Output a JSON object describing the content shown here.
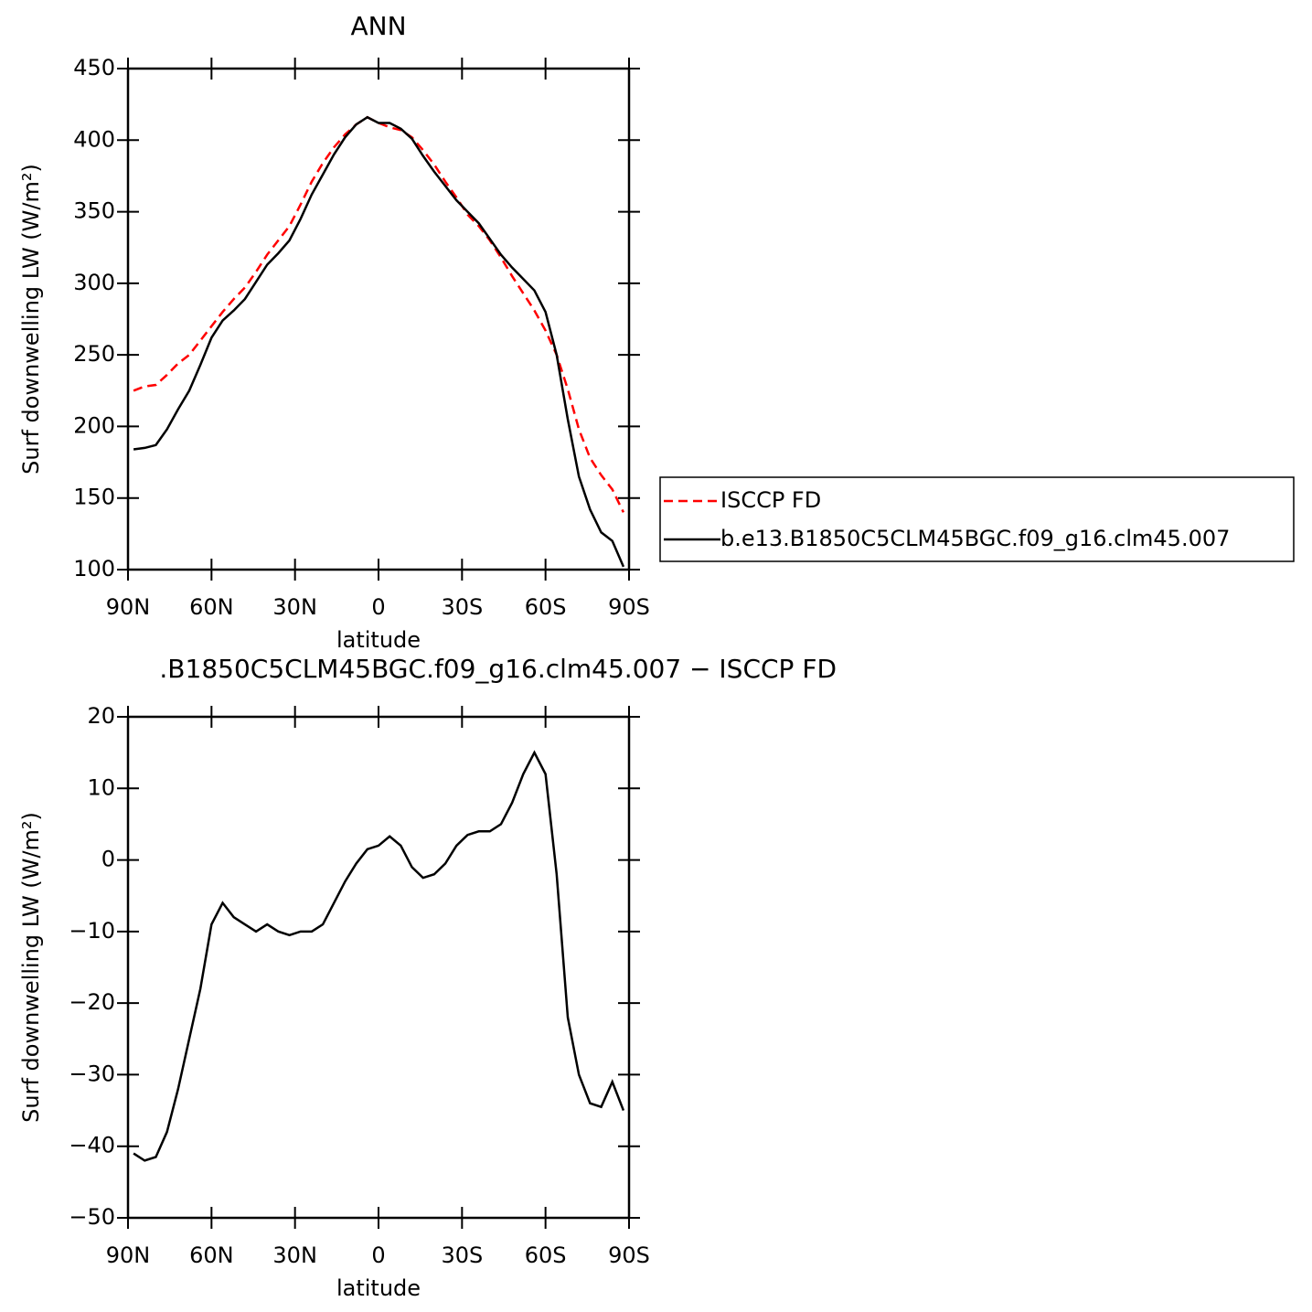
{
  "chart_data": [
    {
      "type": "line",
      "title": "ANN",
      "xlabel": "latitude",
      "ylabel": "Surf downwelling LW (W/m²)",
      "x": [
        88,
        84,
        80,
        76,
        72,
        68,
        64,
        60,
        56,
        52,
        48,
        44,
        40,
        36,
        32,
        28,
        24,
        20,
        16,
        12,
        8,
        4,
        0,
        -4,
        -8,
        -12,
        -16,
        -20,
        -24,
        -28,
        -32,
        -36,
        -40,
        -44,
        -48,
        -52,
        -56,
        -60,
        -64,
        -68,
        -72,
        -76,
        -80,
        -84,
        -88
      ],
      "series": [
        {
          "name": "ISCCP FD",
          "color": "#ff0000",
          "line_style": "dashed",
          "values": [
            225,
            228,
            229,
            236,
            244,
            250,
            260,
            270,
            280,
            289,
            297,
            308,
            320,
            330,
            340,
            355,
            371,
            384,
            395,
            404,
            411,
            416,
            412,
            409,
            407,
            402,
            393,
            383,
            371,
            360,
            348,
            340,
            330,
            318,
            305,
            293,
            281,
            267,
            250,
            226,
            198,
            178,
            166,
            156,
            140
          ]
        },
        {
          "name": "b.e13.B1850C5CLM45BGC.f09_g16.clm45.007",
          "color": "#000000",
          "line_style": "solid",
          "values": [
            184,
            185,
            187,
            198,
            212,
            225,
            243,
            262,
            274,
            281,
            289,
            301,
            313,
            321,
            330,
            345,
            362,
            376,
            390,
            402,
            411,
            416,
            412,
            412,
            408,
            401,
            389,
            378,
            368,
            358,
            350,
            342,
            331,
            320,
            311,
            303,
            295,
            280,
            250,
            205,
            165,
            142,
            126,
            120,
            102
          ]
        }
      ],
      "xlim": [
        90,
        -90
      ],
      "xticks": [
        {
          "value": 90,
          "label": "90N"
        },
        {
          "value": 60,
          "label": "60N"
        },
        {
          "value": 30,
          "label": "30N"
        },
        0,
        {
          "value": -30,
          "label": "30S"
        },
        {
          "value": -60,
          "label": "60S"
        },
        {
          "value": -90,
          "label": "90S"
        }
      ],
      "ylim": [
        100,
        450
      ],
      "yticks": [
        100,
        150,
        200,
        250,
        300,
        350,
        400,
        450
      ],
      "legend": "right"
    },
    {
      "type": "line",
      "title": ".B1850C5CLM45BGC.f09_g16.clm45.007 − ISCCP FD",
      "xlabel": "latitude",
      "ylabel": "Surf downwelling LW (W/m²)",
      "x": [
        88,
        84,
        80,
        76,
        72,
        68,
        64,
        60,
        56,
        52,
        48,
        44,
        40,
        36,
        32,
        28,
        24,
        20,
        16,
        12,
        8,
        4,
        0,
        -4,
        -8,
        -12,
        -16,
        -20,
        -24,
        -28,
        -32,
        -36,
        -40,
        -44,
        -48,
        -52,
        -56,
        -60,
        -64,
        -68,
        -72,
        -76,
        -80,
        -84,
        -88
      ],
      "series": [
        {
          "color": "#000000",
          "line_style": "solid",
          "values": [
            -41,
            -42,
            -41.5,
            -38,
            -32,
            -25,
            -18,
            -9,
            -6,
            -8,
            -9,
            -10,
            -9,
            -10,
            -10.5,
            -10,
            -10,
            -9,
            -6,
            -3,
            -0.5,
            1.5,
            2,
            3.3,
            2,
            -1,
            -2.5,
            -2,
            -0.5,
            2,
            3.5,
            4,
            4,
            5,
            8,
            12,
            15,
            12,
            -2,
            -22,
            -30,
            -34,
            -34.5,
            -31,
            -35
          ]
        }
      ],
      "xlim": [
        90,
        -90
      ],
      "xticks": [
        {
          "value": 90,
          "label": "90N"
        },
        {
          "value": 60,
          "label": "60N"
        },
        {
          "value": 30,
          "label": "30N"
        },
        0,
        {
          "value": -30,
          "label": "30S"
        },
        {
          "value": -60,
          "label": "60S"
        },
        {
          "value": -90,
          "label": "90S"
        }
      ],
      "ylim": [
        -50,
        20
      ],
      "yticks": [
        {
          "value": -50,
          "label": "−50"
        },
        {
          "value": -40,
          "label": "−40"
        },
        {
          "value": -30,
          "label": "−30"
        },
        {
          "value": -20,
          "label": "−20"
        },
        {
          "value": -10,
          "label": "−10"
        },
        0,
        10,
        20
      ]
    }
  ]
}
